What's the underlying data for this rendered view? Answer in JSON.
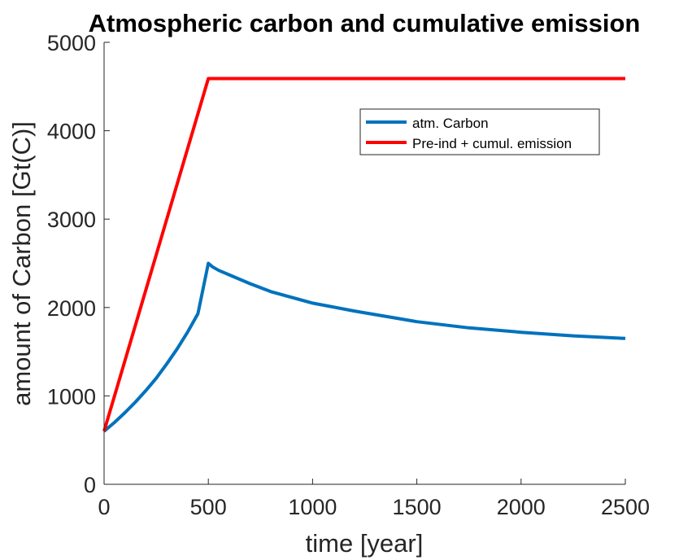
{
  "chart_data": {
    "type": "line",
    "title": "Atmospheric carbon and cumulative emission",
    "xlabel": "time [year]",
    "ylabel": "amount of Carbon [Gt(C)]",
    "xlim": [
      0,
      2500
    ],
    "ylim": [
      0,
      5000
    ],
    "xticks": [
      0,
      500,
      1000,
      1500,
      2000,
      2500
    ],
    "yticks": [
      0,
      1000,
      2000,
      3000,
      4000,
      5000
    ],
    "xtick_labels": [
      "0",
      "500",
      "1000",
      "1500",
      "2000",
      "2500"
    ],
    "ytick_labels": [
      "0",
      "1000",
      "2000",
      "3000",
      "4000",
      "5000"
    ],
    "grid": false,
    "legend_position": "top-right",
    "series": [
      {
        "name": "atm. Carbon",
        "color": "#0072BD",
        "x": [
          0,
          50,
          100,
          150,
          200,
          250,
          300,
          350,
          400,
          450,
          500,
          520,
          550,
          600,
          700,
          800,
          1000,
          1200,
          1500,
          1750,
          2000,
          2250,
          2500
        ],
        "y": [
          600,
          700,
          810,
          930,
          1060,
          1200,
          1360,
          1530,
          1720,
          1930,
          2500,
          2460,
          2420,
          2370,
          2270,
          2180,
          2050,
          1960,
          1840,
          1770,
          1720,
          1680,
          1650
        ]
      },
      {
        "name": "Pre-ind + cumul. emission",
        "color": "#FF0000",
        "x": [
          0,
          500,
          2500
        ],
        "y": [
          600,
          4590,
          4590
        ]
      }
    ]
  }
}
